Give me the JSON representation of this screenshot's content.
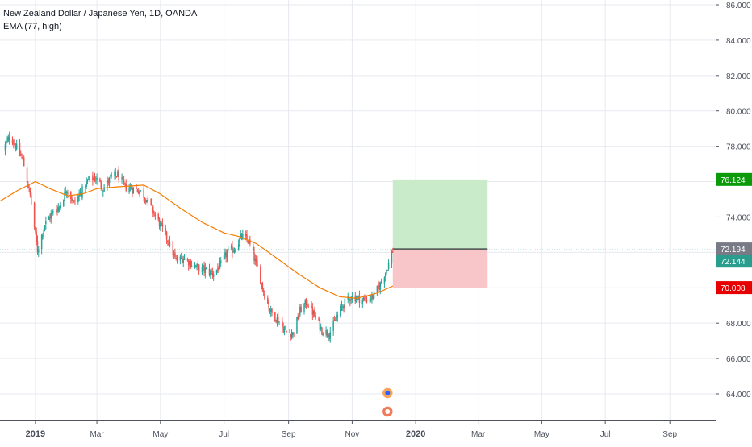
{
  "legend": {
    "title": "New Zealand Dollar / Japanese Yen, 1D, OANDA",
    "indicator": "EMA (77, high)"
  },
  "colors": {
    "background": "#ffffff",
    "grid": "#e6e9ef",
    "axis_text": "#4a4f5b",
    "bull_candle": "#26a69a",
    "bear_candle": "#ef5350",
    "ema": "#f57c00",
    "current_price_line": "#26a69a",
    "profit_zone": "#c9ebc9",
    "loss_zone": "#f8c6c8",
    "target_label": "#0a9a0a",
    "stop_label": "#e80000",
    "entry_label": "#787b86",
    "current_label": "#2a9d8f"
  },
  "chart_data": {
    "type": "candlestick",
    "instrument": "New Zealand Dollar / Japanese Yen",
    "timeframe": "1D",
    "source": "OANDA",
    "y_axis": {
      "ticks": [
        "86.000",
        "84.000",
        "82.000",
        "80.000",
        "78.000",
        "76.000",
        "74.000",
        "72.000",
        "70.000",
        "68.000",
        "66.000",
        "64.000"
      ],
      "range": [
        62.5,
        86.3
      ]
    },
    "x_axis": {
      "tick_labels": [
        "2019",
        "Mar",
        "May",
        "Jul",
        "Sep",
        "Nov",
        "2020",
        "Mar",
        "May",
        "Jul",
        "Sep"
      ],
      "bold_labels": [
        "2019",
        "2020"
      ]
    },
    "close_path": [
      [
        "2018-12-01",
        77.8
      ],
      [
        "2018-12-08",
        78.6
      ],
      [
        "2018-12-14",
        77.9
      ],
      [
        "2018-12-20",
        77.2
      ],
      [
        "2018-12-27",
        75.2
      ],
      [
        "2019-01-03",
        72.1
      ],
      [
        "2019-01-10",
        73.6
      ],
      [
        "2019-01-17",
        74.2
      ],
      [
        "2019-01-24",
        74.6
      ],
      [
        "2019-01-31",
        75.6
      ],
      [
        "2019-02-07",
        74.8
      ],
      [
        "2019-02-14",
        75.4
      ],
      [
        "2019-02-21",
        76.1
      ],
      [
        "2019-02-28",
        76.2
      ],
      [
        "2019-03-07",
        75.6
      ],
      [
        "2019-03-14",
        76.2
      ],
      [
        "2019-03-21",
        76.4
      ],
      [
        "2019-03-28",
        75.7
      ],
      [
        "2019-04-04",
        75.6
      ],
      [
        "2019-04-11",
        75.5
      ],
      [
        "2019-04-18",
        75.0
      ],
      [
        "2019-04-25",
        74.2
      ],
      [
        "2019-05-02",
        73.4
      ],
      [
        "2019-05-09",
        72.6
      ],
      [
        "2019-05-16",
        71.5
      ],
      [
        "2019-05-23",
        71.7
      ],
      [
        "2019-05-30",
        71.4
      ],
      [
        "2019-06-06",
        71.1
      ],
      [
        "2019-06-13",
        71.0
      ],
      [
        "2019-06-20",
        70.8
      ],
      [
        "2019-06-27",
        71.2
      ],
      [
        "2019-07-04",
        72.0
      ],
      [
        "2019-07-11",
        72.2
      ],
      [
        "2019-07-18",
        72.9
      ],
      [
        "2019-07-25",
        72.6
      ],
      [
        "2019-08-01",
        71.3
      ],
      [
        "2019-08-08",
        69.8
      ],
      [
        "2019-08-15",
        68.6
      ],
      [
        "2019-08-22",
        68.2
      ],
      [
        "2019-08-29",
        67.5
      ],
      [
        "2019-09-05",
        67.4
      ],
      [
        "2019-09-12",
        68.7
      ],
      [
        "2019-09-19",
        69.2
      ],
      [
        "2019-09-26",
        68.4
      ],
      [
        "2019-10-03",
        67.6
      ],
      [
        "2019-10-10",
        67.4
      ],
      [
        "2019-10-17",
        68.3
      ],
      [
        "2019-10-24",
        69.1
      ],
      [
        "2019-10-31",
        69.5
      ],
      [
        "2019-11-07",
        69.4
      ],
      [
        "2019-11-14",
        69.3
      ],
      [
        "2019-11-21",
        69.5
      ],
      [
        "2019-11-28",
        70.2
      ],
      [
        "2019-12-05",
        71.2
      ],
      [
        "2019-12-10",
        72.1
      ]
    ],
    "ema": {
      "name": "EMA (77, high)",
      "points": [
        [
          "2018-11-28",
          74.9
        ],
        [
          "2018-12-15",
          75.5
        ],
        [
          "2019-01-01",
          76.0
        ],
        [
          "2019-01-15",
          75.6
        ],
        [
          "2019-02-01",
          75.2
        ],
        [
          "2019-02-15",
          75.3
        ],
        [
          "2019-03-01",
          75.6
        ],
        [
          "2019-03-20",
          75.7
        ],
        [
          "2019-04-15",
          75.8
        ],
        [
          "2019-05-01",
          75.3
        ],
        [
          "2019-05-20",
          74.5
        ],
        [
          "2019-06-10",
          73.7
        ],
        [
          "2019-07-01",
          73.1
        ],
        [
          "2019-07-15",
          72.9
        ],
        [
          "2019-08-01",
          72.5
        ],
        [
          "2019-08-20",
          71.7
        ],
        [
          "2019-09-10",
          70.8
        ],
        [
          "2019-10-01",
          70.0
        ],
        [
          "2019-10-20",
          69.5
        ],
        [
          "2019-11-05",
          69.4
        ],
        [
          "2019-11-25",
          69.7
        ],
        [
          "2019-12-10",
          70.1
        ]
      ]
    },
    "position": {
      "entry": 72.194,
      "target": 76.124,
      "stop": 70.008,
      "start": "2019-12-10",
      "end": "2020-03-10"
    },
    "price_labels": {
      "target": "76.124",
      "entry": "72.194",
      "current": "72.144",
      "stop": "70.008"
    },
    "current_price": 72.144
  }
}
